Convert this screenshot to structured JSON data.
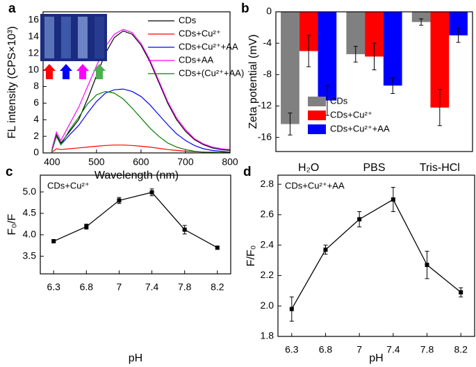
{
  "chart_data": [
    {
      "type": "line",
      "panel_label": "a",
      "x_label": "Wavelength (nm)",
      "y_label": "FL intensity (CPS×10³)",
      "x": [
        400,
        410,
        420,
        440,
        460,
        480,
        500,
        520,
        540,
        560,
        580,
        600,
        620,
        640,
        660,
        680,
        700,
        720,
        740,
        760,
        780,
        800
      ],
      "xlim": [
        380,
        800
      ],
      "xticks": [
        400,
        500,
        600,
        700,
        800
      ],
      "ylim": [
        0,
        17
      ],
      "yticks": [
        0,
        2,
        4,
        6,
        8,
        10,
        12,
        14,
        16
      ],
      "legend": "upper right",
      "series": [
        {
          "name": "CDs",
          "color": "#000000",
          "values": [
            0.3,
            2.2,
            1.2,
            2.6,
            4.0,
            6.5,
            9.3,
            12.0,
            13.9,
            14.7,
            14.3,
            13.0,
            11.0,
            8.5,
            6.0,
            4.0,
            2.6,
            1.6,
            1.0,
            0.6,
            0.4,
            0.3
          ]
        },
        {
          "name": "CDs+Cu²⁺",
          "color": "#ff0000",
          "values": [
            0.1,
            0.5,
            0.4,
            0.5,
            0.6,
            0.7,
            0.8,
            0.9,
            0.95,
            0.95,
            0.9,
            0.8,
            0.7,
            0.55,
            0.4,
            0.3,
            0.2,
            0.15,
            0.1,
            0.05,
            0.05,
            0.05
          ]
        },
        {
          "name": "CDs+Cu²⁺+AA",
          "color": "#0000ff",
          "values": [
            0.3,
            2.0,
            1.0,
            2.2,
            3.3,
            4.8,
            6.2,
            7.2,
            7.6,
            7.7,
            7.4,
            6.8,
            5.8,
            4.6,
            3.4,
            2.3,
            1.5,
            0.9,
            0.5,
            0.3,
            0.2,
            0.1
          ]
        },
        {
          "name": "CDs+AA",
          "color": "#ff00ff",
          "values": [
            0.5,
            2.5,
            1.5,
            3.5,
            5.5,
            8.0,
            10.5,
            12.8,
            14.3,
            14.9,
            14.5,
            13.2,
            11.2,
            8.7,
            6.2,
            4.2,
            2.8,
            1.7,
            1.1,
            0.7,
            0.5,
            0.4
          ]
        },
        {
          "name": "CDs+(Cu²⁺+AA)",
          "color": "#008000",
          "values": [
            0.3,
            2.0,
            1.0,
            2.8,
            4.3,
            5.9,
            7.0,
            7.4,
            7.2,
            6.5,
            5.4,
            4.2,
            3.0,
            2.0,
            1.2,
            0.7,
            0.4,
            0.2,
            0.1,
            0.1,
            0.05,
            0.05
          ]
        }
      ]
    },
    {
      "type": "bar",
      "panel_label": "b",
      "y_label": "Zeta potential (mV)",
      "categories": [
        "H₂O",
        "PBS",
        "Tris-HCl"
      ],
      "ylim": [
        -17.8,
        0
      ],
      "yticks": [
        0,
        -4,
        -8,
        -12,
        -16
      ],
      "legend": "lower left",
      "series": [
        {
          "name": "CDs",
          "color": "#808080",
          "values": [
            -14.3,
            -5.4,
            -1.3
          ],
          "errors": [
            1.4,
            1.0,
            0.4
          ]
        },
        {
          "name": "CDs+Cu²⁺",
          "color": "#ff0000",
          "values": [
            -5.0,
            -5.7,
            -12.2
          ],
          "errors": [
            2.0,
            1.7,
            2.3
          ]
        },
        {
          "name": "CDs+Cu²⁺+AA",
          "color": "#0000ff",
          "values": [
            -11.3,
            -9.4,
            -3.0
          ],
          "errors": [
            1.9,
            1.0,
            0.9
          ]
        }
      ]
    },
    {
      "type": "errorline",
      "panel_label": "c",
      "x_label": "pH",
      "y_label": "F₀/F",
      "annotation": "CDs+Cu²⁺",
      "categories": [
        "6.3",
        "6.8",
        "7",
        "7.4",
        "7.8",
        "8.2"
      ],
      "ylim": [
        3.09,
        5.39
      ],
      "yticks": [
        3.5,
        {
          "value": 4,
          "label": "4.0"
        },
        4.5,
        {
          "value": 5,
          "label": "5.0"
        }
      ],
      "series": [
        {
          "color": "#000000",
          "values": [
            3.85,
            4.19,
            4.8,
            4.99,
            4.12,
            3.7
          ],
          "errors": [
            0.04,
            0.06,
            0.07,
            0.08,
            0.1,
            0.03
          ]
        }
      ]
    },
    {
      "type": "errorline",
      "panel_label": "d",
      "x_label": "pH",
      "y_label": "F/F₀",
      "annotation": "CDs+Cu²⁺+AA",
      "categories": [
        "6.3",
        "6.8",
        "7",
        "7.4",
        "7.8",
        "8.2"
      ],
      "ylim": [
        1.8,
        2.86
      ],
      "yticks": [
        1.8,
        {
          "value": 2,
          "label": "2.0"
        },
        2.2,
        2.4,
        2.6,
        2.8
      ],
      "series": [
        {
          "color": "#000000",
          "values": [
            1.98,
            2.37,
            2.57,
            2.7,
            2.27,
            2.09
          ],
          "errors": [
            0.08,
            0.03,
            0.05,
            0.08,
            0.09,
            0.03
          ]
        }
      ]
    }
  ]
}
